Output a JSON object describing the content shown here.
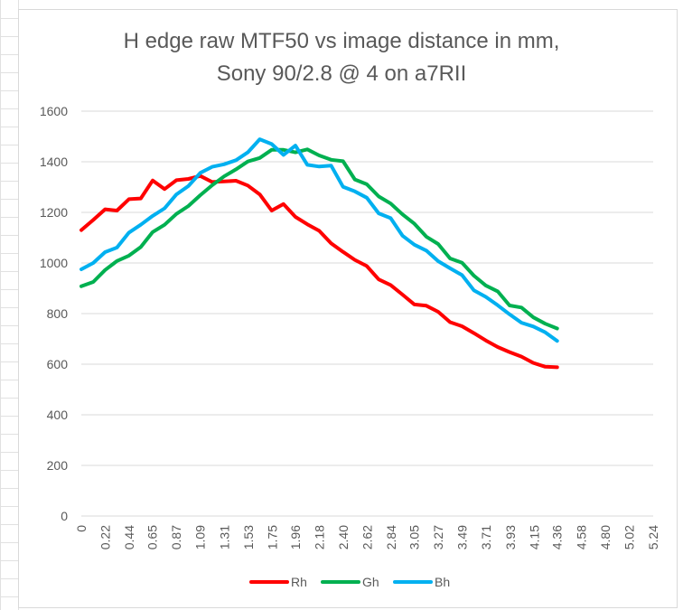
{
  "chart_data": {
    "type": "line",
    "title_lines": [
      "H edge raw MTF50 vs image distance in mm,",
      "Sony 90/2.8 @ 4 on a7RII"
    ],
    "xlabel": "",
    "ylabel": "",
    "ylim": [
      0,
      1600
    ],
    "y_ticks": [
      "0",
      "200",
      "400",
      "600",
      "800",
      "1000",
      "1200",
      "1400",
      "1600"
    ],
    "x_tick_labels": [
      "0",
      "0.22",
      "0.44",
      "0.65",
      "0.87",
      "1.09",
      "1.31",
      "1.53",
      "1.75",
      "1.96",
      "2.18",
      "2.40",
      "2.62",
      "2.84",
      "3.05",
      "3.27",
      "3.49",
      "3.71",
      "3.93",
      "4.15",
      "4.36",
      "4.58",
      "4.80",
      "5.02",
      "5.24"
    ],
    "x_min": 0,
    "x_max": 5.24,
    "grid": true,
    "legend_position": "bottom",
    "series": [
      {
        "name": "Rh",
        "color": "#ff0000",
        "x": [
          0,
          0.109,
          0.218,
          0.327,
          0.436,
          0.545,
          0.654,
          0.763,
          0.872,
          0.981,
          1.09,
          1.199,
          1.308,
          1.417,
          1.526,
          1.635,
          1.744,
          1.853,
          1.962,
          2.071,
          2.18,
          2.289,
          2.398,
          2.507,
          2.616,
          2.725,
          2.834,
          2.943,
          3.052,
          3.161,
          3.27,
          3.379,
          3.488,
          3.597,
          3.706,
          3.815,
          3.924,
          4.033,
          4.142,
          4.251,
          4.36
        ],
        "values": [
          1130,
          1170,
          1212,
          1207,
          1252,
          1255,
          1326,
          1292,
          1327,
          1332,
          1344,
          1320,
          1322,
          1325,
          1306,
          1271,
          1207,
          1233,
          1182,
          1153,
          1127,
          1078,
          1044,
          1012,
          988,
          935,
          913,
          875,
          836,
          831,
          807,
          766,
          750,
          723,
          694,
          668,
          648,
          630,
          605,
          590,
          588
        ]
      },
      {
        "name": "Gh",
        "color": "#00b050",
        "x": [
          0,
          0.109,
          0.218,
          0.327,
          0.436,
          0.545,
          0.654,
          0.763,
          0.872,
          0.981,
          1.09,
          1.199,
          1.308,
          1.417,
          1.526,
          1.635,
          1.744,
          1.853,
          1.962,
          2.071,
          2.18,
          2.289,
          2.398,
          2.507,
          2.616,
          2.725,
          2.834,
          2.943,
          3.052,
          3.161,
          3.27,
          3.379,
          3.488,
          3.597,
          3.706,
          3.815,
          3.924,
          4.033,
          4.142,
          4.251,
          4.36
        ],
        "values": [
          908,
          925,
          972,
          1008,
          1029,
          1063,
          1122,
          1151,
          1194,
          1225,
          1268,
          1307,
          1342,
          1370,
          1401,
          1415,
          1447,
          1447,
          1437,
          1449,
          1425,
          1408,
          1402,
          1330,
          1311,
          1263,
          1235,
          1192,
          1155,
          1104,
          1075,
          1018,
          1001,
          950,
          911,
          888,
          832,
          824,
          785,
          760,
          741
        ]
      },
      {
        "name": "Bh",
        "color": "#00b0f0",
        "x": [
          0,
          0.109,
          0.218,
          0.327,
          0.436,
          0.545,
          0.654,
          0.763,
          0.872,
          0.981,
          1.09,
          1.199,
          1.308,
          1.417,
          1.526,
          1.635,
          1.744,
          1.853,
          1.962,
          2.071,
          2.18,
          2.289,
          2.398,
          2.507,
          2.616,
          2.725,
          2.834,
          2.943,
          3.052,
          3.161,
          3.27,
          3.379,
          3.488,
          3.597,
          3.706,
          3.815,
          3.924,
          4.033,
          4.142,
          4.251,
          4.36
        ],
        "values": [
          975,
          1000,
          1043,
          1061,
          1120,
          1151,
          1186,
          1216,
          1271,
          1304,
          1356,
          1380,
          1390,
          1406,
          1437,
          1489,
          1470,
          1427,
          1464,
          1388,
          1381,
          1385,
          1301,
          1283,
          1258,
          1196,
          1177,
          1108,
          1072,
          1049,
          1007,
          979,
          952,
          892,
          866,
          833,
          797,
          764,
          749,
          726,
          692
        ]
      }
    ]
  }
}
